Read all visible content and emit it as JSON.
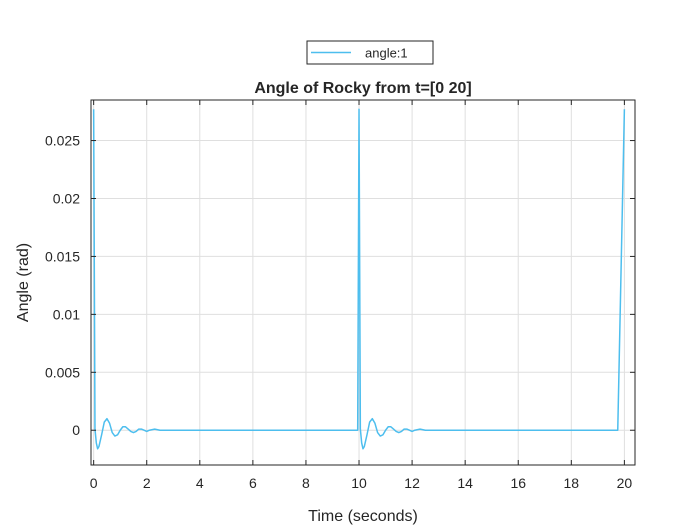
{
  "chart_data": {
    "type": "line",
    "title": "Angle of Rocky from t=[0 20]",
    "xlabel": "Time (seconds)",
    "ylabel": "Angle (rad)",
    "xlim": [
      -0.1,
      20.4
    ],
    "ylim": [
      -0.003,
      0.0285
    ],
    "xticks": [
      0,
      2,
      4,
      6,
      8,
      10,
      12,
      14,
      16,
      18,
      20
    ],
    "xtick_labels": [
      "0",
      "2",
      "4",
      "6",
      "8",
      "10",
      "12",
      "14",
      "16",
      "18",
      "20"
    ],
    "yticks": [
      0,
      0.005,
      0.01,
      0.015,
      0.02,
      0.025
    ],
    "ytick_labels": [
      "0",
      "0.005",
      "0.01",
      "0.015",
      "0.02",
      "0.025"
    ],
    "grid": true,
    "box": true,
    "legend_location": "top-center (outside)",
    "series": [
      {
        "name": "angle:1",
        "color": "#4DBEEE",
        "x": [
          0,
          0.05,
          0.1,
          0.15,
          0.2,
          0.3,
          0.4,
          0.5,
          0.6,
          0.7,
          0.8,
          0.9,
          1.0,
          1.1,
          1.2,
          1.3,
          1.4,
          1.5,
          1.6,
          1.7,
          1.8,
          1.9,
          2.0,
          2.1,
          2.3,
          2.5,
          2.7,
          3.0,
          9.95,
          10.0,
          10.05,
          10.1,
          10.15,
          10.2,
          10.3,
          10.4,
          10.5,
          10.6,
          10.7,
          10.8,
          10.9,
          11.0,
          11.1,
          11.2,
          11.3,
          11.4,
          11.5,
          11.6,
          11.7,
          11.8,
          11.9,
          12.0,
          12.1,
          12.3,
          12.5,
          12.7,
          13.0,
          19.75,
          20.0
        ],
        "y": [
          0.0277,
          0.0001,
          -0.0011,
          -0.0016,
          -0.0014,
          -0.0004,
          0.0007,
          0.001,
          0.0006,
          -0.0002,
          -0.0005,
          -0.0004,
          0,
          0.0003,
          0.0003,
          0.0001,
          -0.0001,
          -0.0002,
          -0.0001,
          0.0001,
          0.0001,
          0,
          -0.0001,
          0,
          0.0001,
          0,
          0,
          0,
          0,
          0.0277,
          0.0001,
          -0.0011,
          -0.0016,
          -0.0014,
          -0.0004,
          0.0007,
          0.001,
          0.0006,
          -0.0002,
          -0.0005,
          -0.0004,
          0,
          0.0003,
          0.0003,
          0.0001,
          -0.0001,
          -0.0002,
          -0.0001,
          0.0001,
          0.0001,
          0,
          -0.0001,
          0,
          0.0001,
          0,
          0,
          0,
          0,
          0.0277
        ]
      }
    ]
  }
}
